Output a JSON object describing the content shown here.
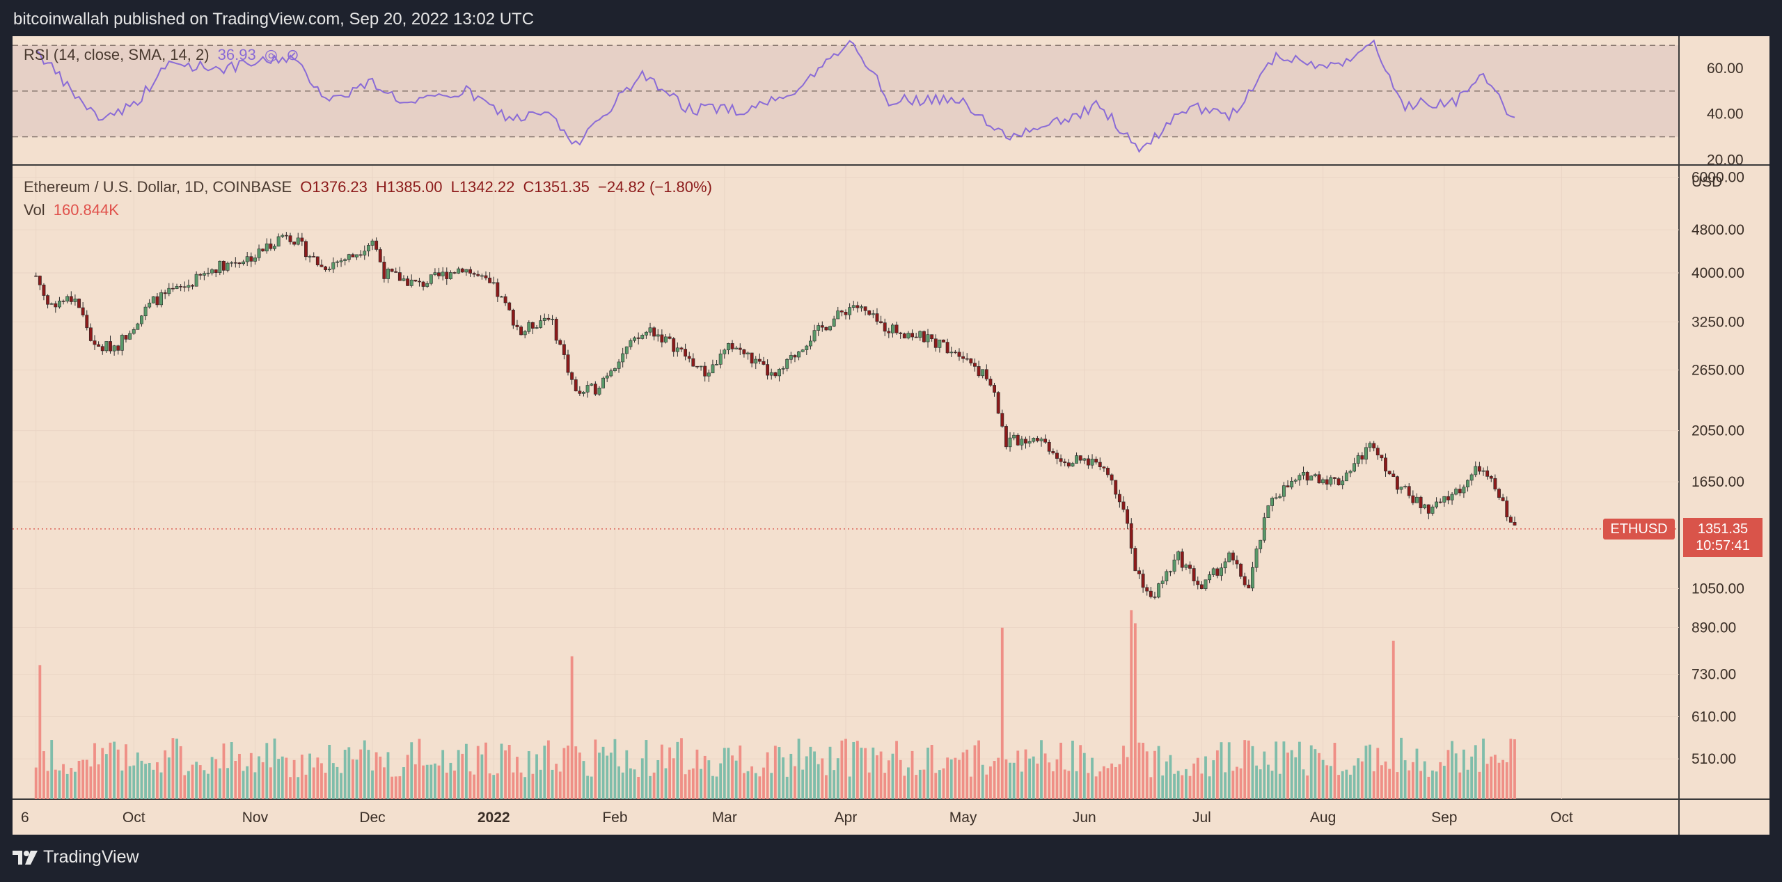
{
  "header": {
    "published_text": "bitcoinwallah published on TradingView.com, Sep 20, 2022 13:02 UTC"
  },
  "footer": {
    "brand": "TradingView"
  },
  "rsi_legend": {
    "label": "RSI (14, close, SMA, 14, 2)",
    "value": "36.93"
  },
  "price_legend": {
    "symbol": "Ethereum / U.S. Dollar, 1D, COINBASE",
    "open": "O1376.23",
    "high": "H1385.00",
    "low": "L1342.22",
    "close": "C1351.35",
    "change": "−24.82 (−1.80%)"
  },
  "vol_legend": {
    "label": "Vol",
    "value": "160.844K"
  },
  "badges": {
    "symbol": "ETHUSD",
    "price": "1351.35",
    "countdown": "10:57:41"
  },
  "colors": {
    "up": "#5a9a6a",
    "down": "#8c1a1a",
    "rsi_line": "#8a6bd6",
    "vol_up": "#7fbdaa",
    "vol_down": "#ef8f86",
    "price_line": "#d9544a"
  },
  "chart_data": {
    "type": "candlestick",
    "currency_label": "USD",
    "price_axis": {
      "scale": "log",
      "ticks": [
        "6000.00",
        "4800.00",
        "4000.00",
        "3250.00",
        "2650.00",
        "2050.00",
        "1650.00",
        "1050.00",
        "890.00",
        "730.00",
        "610.00",
        "510.00"
      ],
      "range": [
        430,
        6300
      ]
    },
    "rsi_axis": {
      "ticks": [
        "60.00",
        "40.00",
        "20.00"
      ],
      "range": [
        18,
        74
      ],
      "bands": [
        30,
        50,
        70
      ]
    },
    "x_labels": [
      "6",
      "Oct",
      "Nov",
      "Dec",
      "2022",
      "Feb",
      "Mar",
      "Apr",
      "May",
      "Jun",
      "Jul",
      "Aug",
      "Sep",
      "Oct"
    ],
    "last_price": 1351.35,
    "price_path": [
      {
        "date": "2021-09-06",
        "close": 3950
      },
      {
        "date": "2021-09-09",
        "close": 3500
      },
      {
        "date": "2021-09-16",
        "close": 3600
      },
      {
        "date": "2021-09-21",
        "close": 2900
      },
      {
        "date": "2021-09-27",
        "close": 2950
      },
      {
        "date": "2021-10-06",
        "close": 3550
      },
      {
        "date": "2021-10-15",
        "close": 3800
      },
      {
        "date": "2021-10-22",
        "close": 4100
      },
      {
        "date": "2021-11-01",
        "close": 4300
      },
      {
        "date": "2021-11-09",
        "close": 4750
      },
      {
        "date": "2021-11-18",
        "close": 4100
      },
      {
        "date": "2021-11-26",
        "close": 4300
      },
      {
        "date": "2021-12-01",
        "close": 4600
      },
      {
        "date": "2021-12-04",
        "close": 4000
      },
      {
        "date": "2021-12-13",
        "close": 3800
      },
      {
        "date": "2021-12-24",
        "close": 4100
      },
      {
        "date": "2022-01-01",
        "close": 3750
      },
      {
        "date": "2022-01-08",
        "close": 3100
      },
      {
        "date": "2022-01-15",
        "close": 3350
      },
      {
        "date": "2022-01-22",
        "close": 2400
      },
      {
        "date": "2022-01-27",
        "close": 2450
      },
      {
        "date": "2022-02-04",
        "close": 2900
      },
      {
        "date": "2022-02-10",
        "close": 3150
      },
      {
        "date": "2022-02-17",
        "close": 2900
      },
      {
        "date": "2022-02-24",
        "close": 2600
      },
      {
        "date": "2022-03-03",
        "close": 2950
      },
      {
        "date": "2022-03-14",
        "close": 2550
      },
      {
        "date": "2022-03-22",
        "close": 3000
      },
      {
        "date": "2022-04-03",
        "close": 3500
      },
      {
        "date": "2022-04-10",
        "close": 3200
      },
      {
        "date": "2022-04-20",
        "close": 3050
      },
      {
        "date": "2022-05-01",
        "close": 2850
      },
      {
        "date": "2022-05-08",
        "close": 2500
      },
      {
        "date": "2022-05-12",
        "close": 1950
      },
      {
        "date": "2022-05-20",
        "close": 2000
      },
      {
        "date": "2022-05-27",
        "close": 1800
      },
      {
        "date": "2022-06-05",
        "close": 1800
      },
      {
        "date": "2022-06-11",
        "close": 1500
      },
      {
        "date": "2022-06-14",
        "close": 1150
      },
      {
        "date": "2022-06-18",
        "close": 1000
      },
      {
        "date": "2022-06-25",
        "close": 1200
      },
      {
        "date": "2022-07-01",
        "close": 1050
      },
      {
        "date": "2022-07-08",
        "close": 1200
      },
      {
        "date": "2022-07-13",
        "close": 1050
      },
      {
        "date": "2022-07-19",
        "close": 1550
      },
      {
        "date": "2022-07-28",
        "close": 1700
      },
      {
        "date": "2022-08-05",
        "close": 1650
      },
      {
        "date": "2022-08-14",
        "close": 1950
      },
      {
        "date": "2022-08-19",
        "close": 1650
      },
      {
        "date": "2022-08-28",
        "close": 1450
      },
      {
        "date": "2022-09-05",
        "close": 1600
      },
      {
        "date": "2022-09-10",
        "close": 1750
      },
      {
        "date": "2022-09-14",
        "close": 1600
      },
      {
        "date": "2022-09-19",
        "close": 1351
      }
    ],
    "rsi_path": [
      {
        "date": "2021-09-06",
        "rsi": 68
      },
      {
        "date": "2021-09-15",
        "rsi": 50
      },
      {
        "date": "2021-09-22",
        "rsi": 38
      },
      {
        "date": "2021-10-01",
        "rsi": 44
      },
      {
        "date": "2021-10-10",
        "rsi": 62
      },
      {
        "date": "2021-10-25",
        "rsi": 60
      },
      {
        "date": "2021-11-10",
        "rsi": 65
      },
      {
        "date": "2021-11-20",
        "rsi": 46
      },
      {
        "date": "2021-12-01",
        "rsi": 54
      },
      {
        "date": "2021-12-10",
        "rsi": 44
      },
      {
        "date": "2021-12-25",
        "rsi": 50
      },
      {
        "date": "2022-01-05",
        "rsi": 38
      },
      {
        "date": "2022-01-15",
        "rsi": 40
      },
      {
        "date": "2022-01-22",
        "rsi": 26
      },
      {
        "date": "2022-02-08",
        "rsi": 58
      },
      {
        "date": "2022-02-20",
        "rsi": 42
      },
      {
        "date": "2022-03-08",
        "rsi": 42
      },
      {
        "date": "2022-03-20",
        "rsi": 52
      },
      {
        "date": "2022-04-03",
        "rsi": 72
      },
      {
        "date": "2022-04-12",
        "rsi": 46
      },
      {
        "date": "2022-05-01",
        "rsi": 46
      },
      {
        "date": "2022-05-12",
        "rsi": 30
      },
      {
        "date": "2022-05-25",
        "rsi": 36
      },
      {
        "date": "2022-06-05",
        "rsi": 44
      },
      {
        "date": "2022-06-15",
        "rsi": 24
      },
      {
        "date": "2022-06-28",
        "rsi": 44
      },
      {
        "date": "2022-07-08",
        "rsi": 38
      },
      {
        "date": "2022-07-20",
        "rsi": 66
      },
      {
        "date": "2022-08-02",
        "rsi": 60
      },
      {
        "date": "2022-08-14",
        "rsi": 70
      },
      {
        "date": "2022-08-22",
        "rsi": 44
      },
      {
        "date": "2022-09-04",
        "rsi": 46
      },
      {
        "date": "2022-09-10",
        "rsi": 58
      },
      {
        "date": "2022-09-19",
        "rsi": 37
      }
    ],
    "volume_spikes_millions": [
      {
        "date": "2021-09-07",
        "volume": 0.61
      },
      {
        "date": "2022-01-21",
        "volume": 0.65
      },
      {
        "date": "2022-05-11",
        "volume": 0.78
      },
      {
        "date": "2022-06-13",
        "volume": 0.86
      },
      {
        "date": "2022-06-14",
        "volume": 0.8
      },
      {
        "date": "2022-08-19",
        "volume": 0.72
      }
    ]
  }
}
